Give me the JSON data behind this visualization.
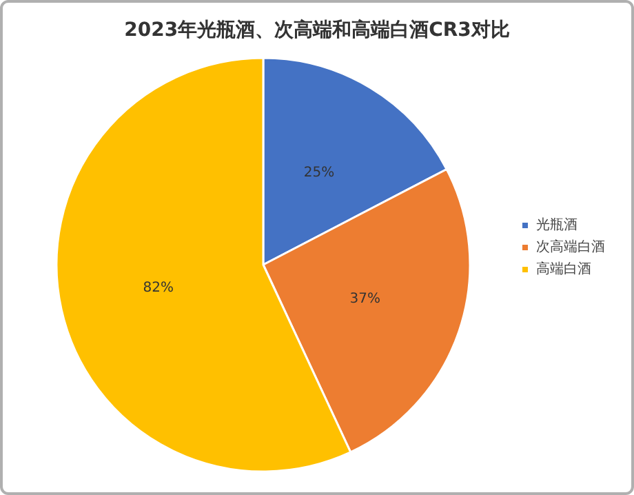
{
  "chart_data": {
    "type": "pie",
    "title": "2023年光瓶酒、次高端和高端白酒CR3对比",
    "categories": [
      "光瓶酒",
      "次高端白酒",
      "高端白酒"
    ],
    "values": [
      25,
      37,
      82
    ],
    "colors": [
      "#4472c4",
      "#ed7d31",
      "#ffc000"
    ],
    "value_labels": [
      "25%",
      "37%",
      "82%"
    ],
    "legend": "right"
  }
}
